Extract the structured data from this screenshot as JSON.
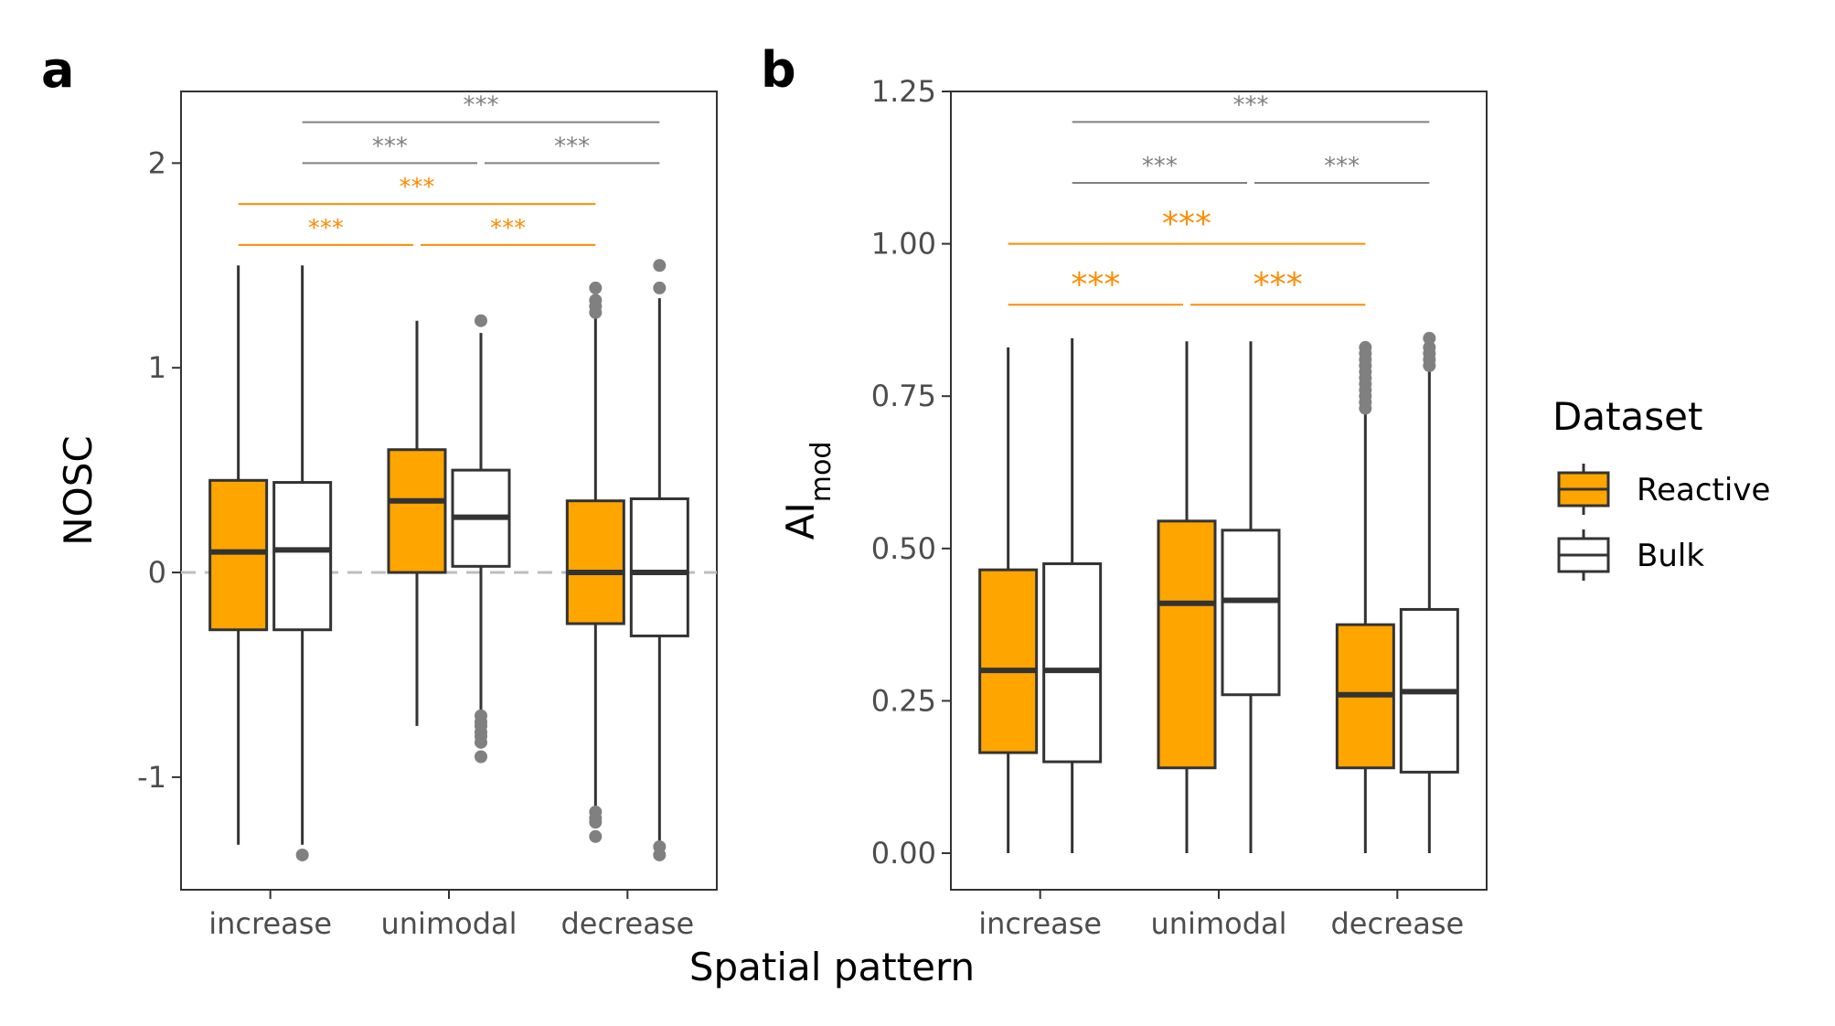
{
  "figure": {
    "xlabel": "Spatial pattern",
    "legend": {
      "title": "Dataset",
      "placement": "right",
      "entries": [
        {
          "name": "Reactive",
          "color": "#FFA500"
        },
        {
          "name": "Bulk",
          "color": "#FFFFFF"
        }
      ]
    },
    "colors": {
      "reactive": "#FFA500",
      "bulk": "#FFFFFF",
      "box_stroke": "#333333",
      "outlier": "#808080",
      "sig_reactive": "#FF8C00",
      "sig_bulk": "#808080",
      "zero_line": "#BEBEBE"
    }
  },
  "chart_data": [
    {
      "type": "boxplot",
      "panel_tag": "a",
      "ylabel": "NOSC",
      "ylim": [
        -1.55,
        2.35
      ],
      "yticks": [
        -1,
        0,
        1,
        2
      ],
      "ytick_labels": [
        "-1",
        "0",
        "1",
        "2"
      ],
      "categories": [
        "increase",
        "unimodal",
        "decrease"
      ],
      "zero_line": 0,
      "series": [
        {
          "name": "Reactive",
          "boxes": [
            {
              "lower_whisker": -1.33,
              "q1": -0.28,
              "median": 0.1,
              "q3": 0.45,
              "upper_whisker": 1.5,
              "outliers": []
            },
            {
              "lower_whisker": -0.75,
              "q1": 0.0,
              "median": 0.35,
              "q3": 0.6,
              "upper_whisker": 1.23,
              "outliers": []
            },
            {
              "lower_whisker": -1.14,
              "q1": -0.25,
              "median": 0.0,
              "q3": 0.35,
              "upper_whisker": 1.25,
              "outliers": [
                1.39,
                1.33,
                1.3,
                1.27,
                -1.17,
                -1.2,
                -1.22,
                -1.29
              ]
            }
          ]
        },
        {
          "name": "Bulk",
          "boxes": [
            {
              "lower_whisker": -1.33,
              "q1": -0.28,
              "median": 0.11,
              "q3": 0.44,
              "upper_whisker": 1.5,
              "outliers": [
                -1.38
              ]
            },
            {
              "lower_whisker": -0.68,
              "q1": 0.03,
              "median": 0.27,
              "q3": 0.5,
              "upper_whisker": 1.17,
              "outliers": [
                1.23,
                -0.7,
                -0.73,
                -0.75,
                -0.78,
                -0.8,
                -0.83,
                -0.9
              ]
            },
            {
              "lower_whisker": -1.31,
              "q1": -0.31,
              "median": 0.0,
              "q3": 0.36,
              "upper_whisker": 1.34,
              "outliers": [
                1.5,
                1.39,
                -1.34,
                -1.38
              ]
            }
          ]
        }
      ],
      "significance": [
        {
          "series": "Reactive",
          "from": 0,
          "to": 1,
          "level": 1.6,
          "label": "***"
        },
        {
          "series": "Reactive",
          "from": 1,
          "to": 2,
          "level": 1.6,
          "label": "***"
        },
        {
          "series": "Reactive",
          "from": 0,
          "to": 2,
          "level": 1.8,
          "label": "***"
        },
        {
          "series": "Bulk",
          "from": 0,
          "to": 1,
          "level": 2.0,
          "label": "***"
        },
        {
          "series": "Bulk",
          "from": 1,
          "to": 2,
          "level": 2.0,
          "label": "***"
        },
        {
          "series": "Bulk",
          "from": 0,
          "to": 2,
          "level": 2.2,
          "label": "***"
        }
      ]
    },
    {
      "type": "boxplot",
      "panel_tag": "b",
      "ylabel": "AI",
      "ylabel_sub": "mod",
      "ylim": [
        -0.06,
        1.25
      ],
      "yticks": [
        0,
        0.25,
        0.5,
        0.75,
        1.0,
        1.25
      ],
      "ytick_labels": [
        "0.00",
        "0.25",
        "0.50",
        "0.75",
        "1.00",
        "1.25"
      ],
      "categories": [
        "increase",
        "unimodal",
        "decrease"
      ],
      "series": [
        {
          "name": "Reactive",
          "boxes": [
            {
              "lower_whisker": 0.0,
              "q1": 0.165,
              "median": 0.3,
              "q3": 0.465,
              "upper_whisker": 0.83,
              "outliers": []
            },
            {
              "lower_whisker": 0.0,
              "q1": 0.14,
              "median": 0.41,
              "q3": 0.545,
              "upper_whisker": 0.84,
              "outliers": []
            },
            {
              "lower_whisker": 0.0,
              "q1": 0.14,
              "median": 0.26,
              "q3": 0.375,
              "upper_whisker": 0.72,
              "outliers": [
                0.83,
                0.82,
                0.81,
                0.8,
                0.79,
                0.78,
                0.77,
                0.76,
                0.75,
                0.74,
                0.73
              ]
            }
          ]
        },
        {
          "name": "Bulk",
          "boxes": [
            {
              "lower_whisker": 0.0,
              "q1": 0.15,
              "median": 0.3,
              "q3": 0.475,
              "upper_whisker": 0.845,
              "outliers": []
            },
            {
              "lower_whisker": 0.0,
              "q1": 0.26,
              "median": 0.415,
              "q3": 0.53,
              "upper_whisker": 0.84,
              "outliers": []
            },
            {
              "lower_whisker": 0.0,
              "q1": 0.133,
              "median": 0.265,
              "q3": 0.4,
              "upper_whisker": 0.79,
              "outliers": [
                0.845,
                0.83,
                0.82,
                0.81,
                0.8
              ]
            }
          ]
        }
      ],
      "significance": [
        {
          "series": "Reactive",
          "from": 0,
          "to": 1,
          "level": 0.9,
          "label": "***"
        },
        {
          "series": "Reactive",
          "from": 1,
          "to": 2,
          "level": 0.9,
          "label": "***"
        },
        {
          "series": "Reactive",
          "from": 0,
          "to": 2,
          "level": 1.0,
          "label": "***"
        },
        {
          "series": "Bulk",
          "from": 0,
          "to": 1,
          "level": 1.1,
          "label": "***"
        },
        {
          "series": "Bulk",
          "from": 1,
          "to": 2,
          "level": 1.1,
          "label": "***"
        },
        {
          "series": "Bulk",
          "from": 0,
          "to": 2,
          "level": 1.2,
          "label": "***"
        }
      ]
    }
  ]
}
